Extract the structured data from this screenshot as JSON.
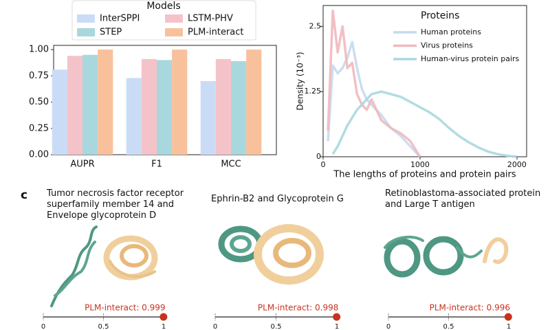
{
  "panel_label": "c",
  "chart_data": [
    {
      "type": "bar",
      "legend_title": "Models",
      "legend": "top",
      "categories": [
        "AUPR",
        "F1",
        "MCC"
      ],
      "series": [
        {
          "name": "InterSPPI",
          "color": "#cadcf5",
          "values": [
            0.81,
            0.73,
            0.7
          ]
        },
        {
          "name": "LSTM-PHV",
          "color": "#f4c3c9",
          "values": [
            0.94,
            0.91,
            0.91
          ]
        },
        {
          "name": "STEP",
          "color": "#a9d7de",
          "values": [
            0.95,
            0.9,
            0.89
          ]
        },
        {
          "name": "PLM-interact",
          "color": "#f8c19c",
          "values": [
            1.0,
            1.0,
            1.0
          ]
        }
      ],
      "ylim": [
        0,
        1.04
      ],
      "yticks": [
        {
          "value": 0,
          "label": "0.00"
        },
        {
          "value": 0.25,
          "label": "0.25"
        },
        {
          "value": 0.5,
          "label": "0.50"
        },
        {
          "value": 0.75,
          "label": "0.75"
        },
        {
          "value": 1,
          "label": "1.00"
        }
      ]
    },
    {
      "type": "line",
      "legend_title": "Proteins",
      "legend": "top-right",
      "xlabel": "The lengths of proteins and protein pairs",
      "ylabel": "Density (10⁻³)",
      "x": [
        50,
        100,
        150,
        200,
        250,
        300,
        350,
        400,
        450,
        500,
        600,
        700,
        800,
        900,
        1000,
        1100,
        1200,
        1300,
        1400,
        1500,
        1600,
        1700,
        1800,
        1900,
        2000
      ],
      "series": [
        {
          "name": "Human proteins",
          "color": "#c6d9f1",
          "values": [
            0.3,
            1.75,
            1.6,
            1.7,
            1.9,
            2.2,
            1.7,
            1.3,
            1.1,
            1.0,
            0.8,
            0.55,
            0.4,
            0.2,
            0,
            null,
            null,
            null,
            null,
            null,
            null,
            null,
            null,
            null,
            null
          ]
        },
        {
          "name": "Virus proteins",
          "color": "#f0b9bd",
          "values": [
            0.5,
            2.8,
            2.0,
            2.5,
            1.7,
            1.8,
            1.2,
            1.0,
            0.9,
            1.1,
            0.7,
            0.55,
            0.45,
            0.3,
            0,
            null,
            null,
            null,
            null,
            null,
            null,
            null,
            null,
            null,
            null
          ]
        },
        {
          "name": "Human-virus protein pairs",
          "color": "#a9d8de",
          "values": [
            null,
            0.05,
            0.2,
            0.4,
            0.6,
            0.75,
            0.9,
            1.0,
            1.1,
            1.2,
            1.25,
            1.2,
            1.15,
            1.05,
            0.95,
            0.85,
            0.72,
            0.55,
            0.4,
            0.28,
            0.18,
            0.1,
            0.05,
            0.02,
            0
          ]
        }
      ],
      "xlim": [
        0,
        2100
      ],
      "xticks": [
        0,
        1000,
        2000
      ],
      "ylim": [
        0,
        2.9
      ],
      "yticks": [
        0,
        1.25,
        2.5
      ]
    },
    {
      "type": "score",
      "title": "Tumor necrosis factor receptor superfamily member 14 and Envelope glycoprotein D",
      "series": [
        {
          "name": "PLM-interact",
          "color": "#c8321f",
          "values": [
            0.999
          ],
          "value_labels": [
            "PLM-interact: 0.999"
          ]
        }
      ],
      "xlim": [
        0,
        1
      ],
      "xticks": [
        0,
        0.5,
        1
      ]
    },
    {
      "type": "score",
      "title": "Ephrin-B2 and Glycoprotein G",
      "series": [
        {
          "name": "PLM-interact",
          "color": "#c8321f",
          "values": [
            0.998
          ],
          "value_labels": [
            "PLM-interact: 0.998"
          ]
        }
      ],
      "xlim": [
        0,
        1
      ],
      "xticks": [
        0,
        0.5,
        1
      ]
    },
    {
      "type": "score",
      "title": "Retinoblastoma-associated protein  and Large T antigen",
      "series": [
        {
          "name": "PLM-interact",
          "color": "#c8321f",
          "values": [
            0.996
          ],
          "value_labels": [
            "PLM-interact: 0.996"
          ]
        }
      ],
      "xlim": [
        0,
        1
      ],
      "xticks": [
        0,
        0.5,
        1
      ]
    }
  ]
}
